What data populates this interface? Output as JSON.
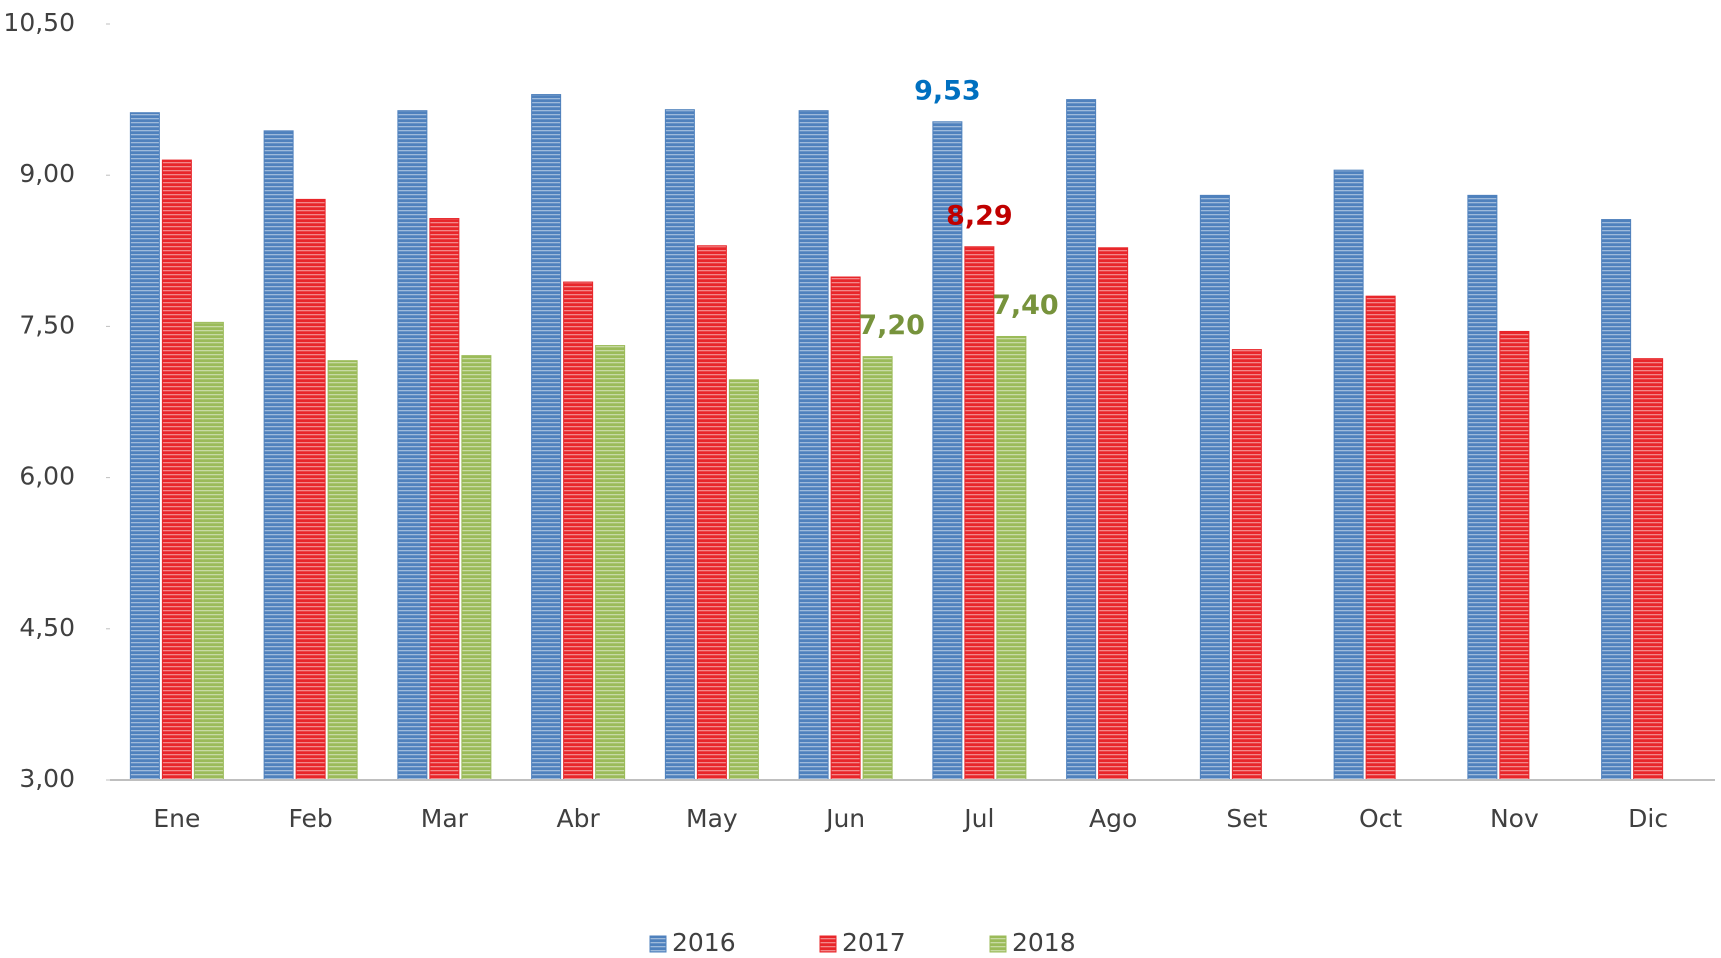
{
  "chart_data": {
    "type": "bar",
    "categories": [
      "Ene",
      "Feb",
      "Mar",
      "Abr",
      "May",
      "Jun",
      "Jul",
      "Ago",
      "Set",
      "Oct",
      "Nov",
      "Dic"
    ],
    "series": [
      {
        "name": "2016",
        "color": "#4f81bd",
        "label_color": "#0070c0",
        "values": [
          9.62,
          9.44,
          9.64,
          9.8,
          9.65,
          9.64,
          9.53,
          9.75,
          8.8,
          9.05,
          8.8,
          8.56
        ],
        "value_labels": [
          null,
          null,
          null,
          null,
          null,
          null,
          "9,53",
          null,
          null,
          null,
          null,
          null
        ]
      },
      {
        "name": "2017",
        "color": "#e8262a",
        "label_color": "#c00000",
        "values": [
          9.15,
          8.76,
          8.57,
          7.94,
          8.3,
          7.99,
          8.29,
          8.28,
          7.27,
          7.8,
          7.45,
          7.18
        ],
        "value_labels": [
          null,
          null,
          null,
          null,
          null,
          null,
          "8,29",
          null,
          null,
          null,
          null,
          null
        ]
      },
      {
        "name": "2018",
        "color": "#9bbb59",
        "label_color": "#77933c",
        "values": [
          7.54,
          7.16,
          7.21,
          7.31,
          6.97,
          7.2,
          7.4,
          null,
          null,
          null,
          null,
          null
        ],
        "value_labels": [
          null,
          null,
          null,
          null,
          null,
          "7,20",
          "7,40",
          null,
          null,
          null,
          null,
          null
        ]
      }
    ],
    "ylim": [
      3,
      10.5
    ],
    "yticks": [
      {
        "value": 3,
        "label": "3,00"
      },
      {
        "value": 4.5,
        "label": "4,50"
      },
      {
        "value": 6,
        "label": "6,00"
      },
      {
        "value": 7.5,
        "label": "7,50"
      },
      {
        "value": 9,
        "label": "9,00"
      },
      {
        "value": 10.5,
        "label": "10,50"
      }
    ],
    "legend": "bottom"
  }
}
